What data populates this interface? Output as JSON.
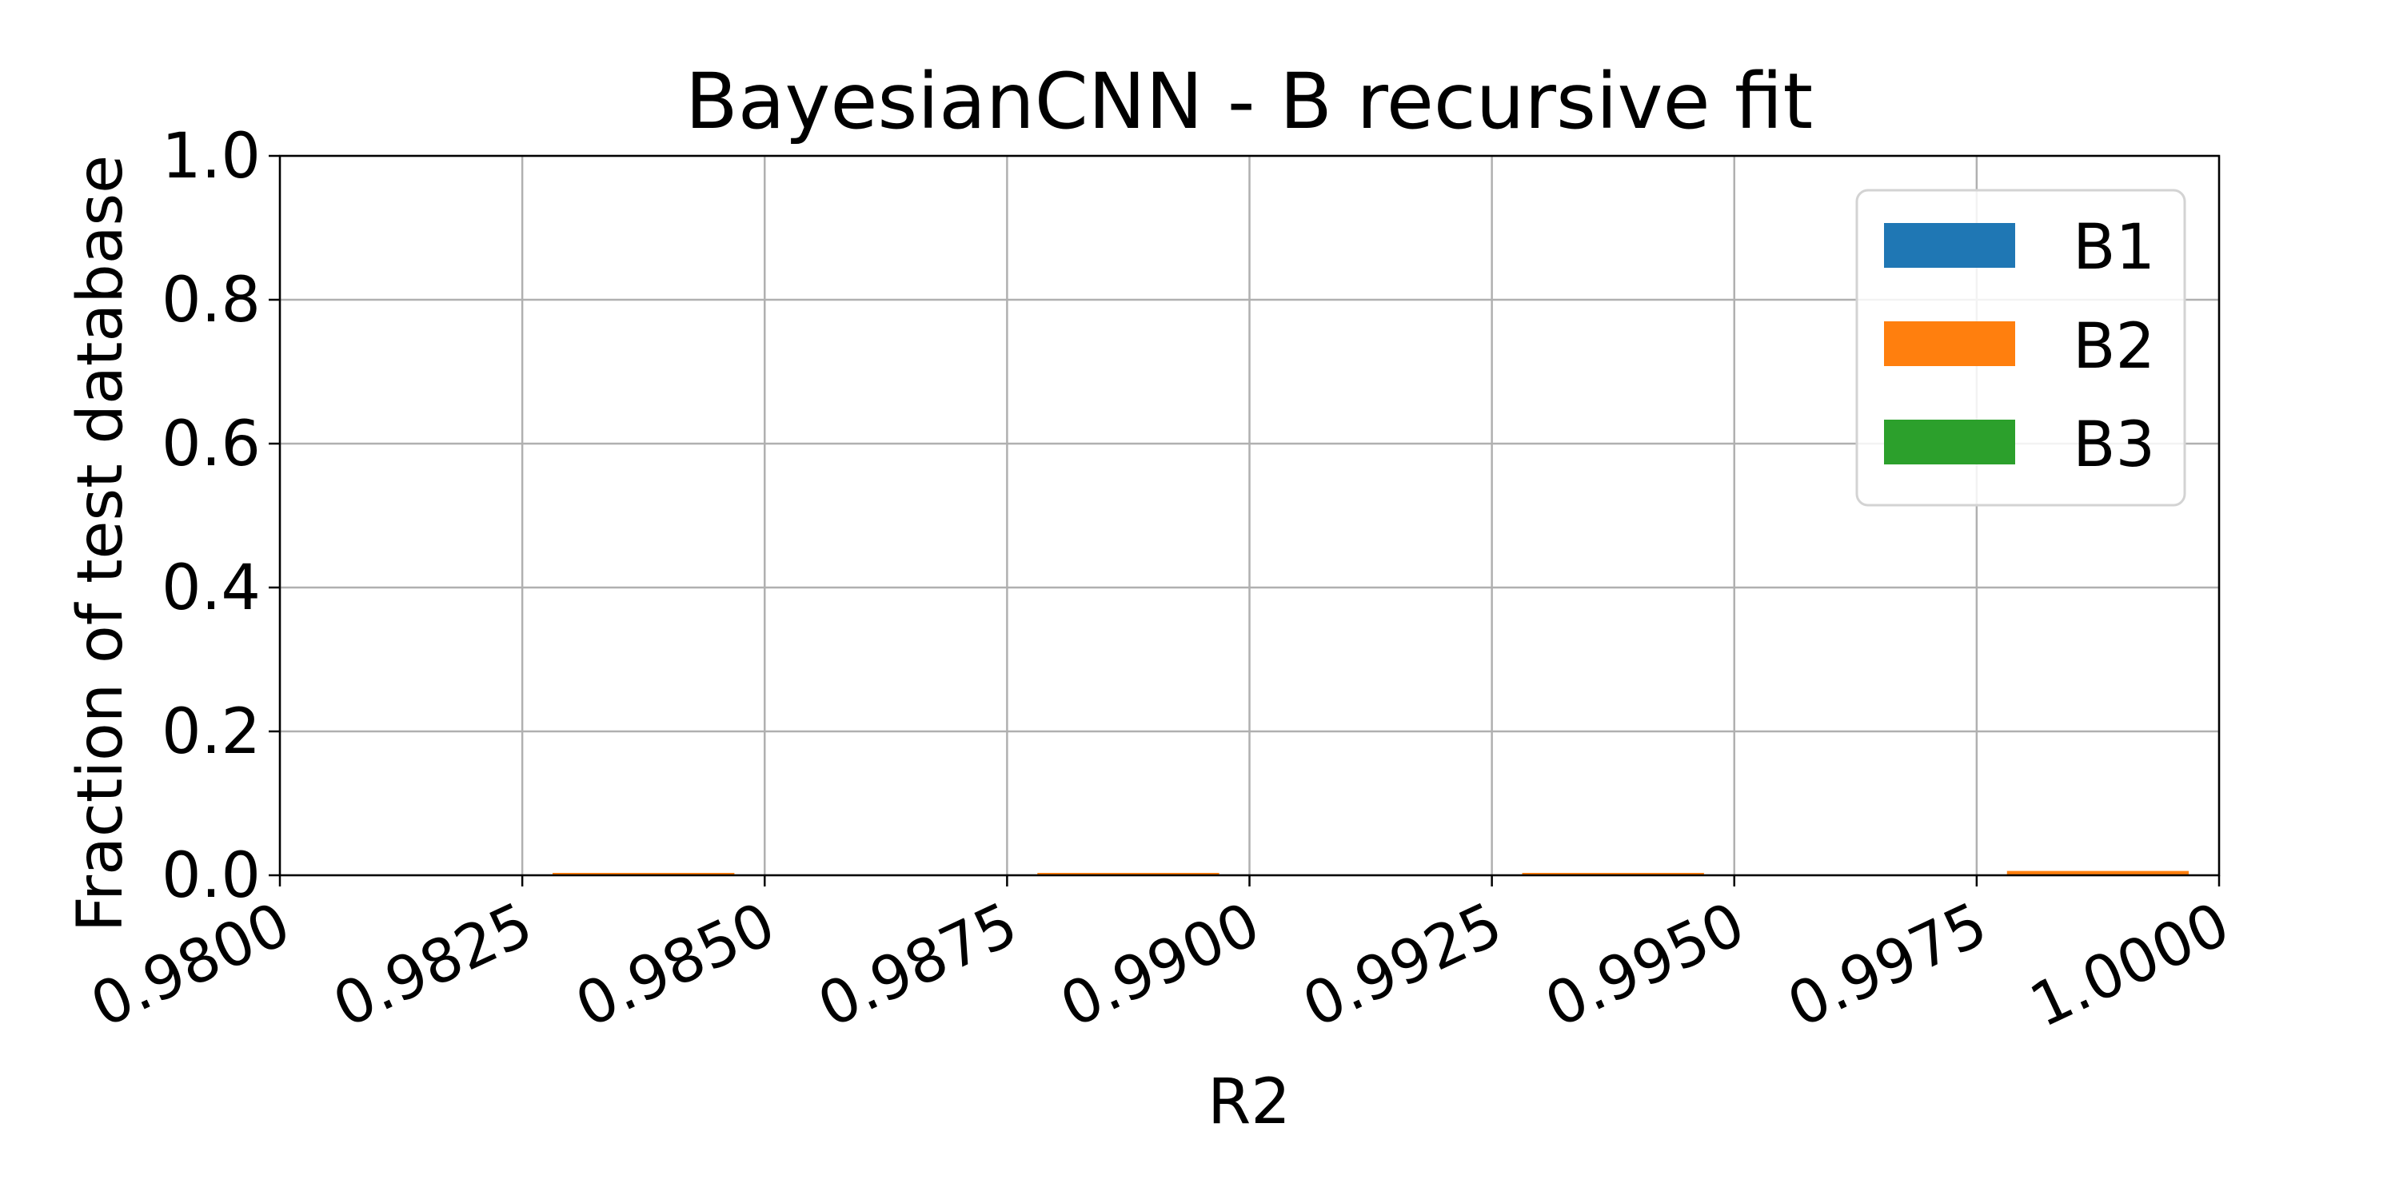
{
  "chart_data": {
    "type": "bar",
    "title": "BayesianCNN - B recursive fit",
    "xlabel": "R2",
    "ylabel": "Fraction of test database",
    "xlim": [
      0.98,
      1.0
    ],
    "ylim": [
      0.0,
      1.0
    ],
    "x_tick_labels": [
      "0.9800",
      "0.9825",
      "0.9850",
      "0.9875",
      "0.9900",
      "0.9925",
      "0.9950",
      "0.9975",
      "1.0000"
    ],
    "y_tick_labels": [
      "0.0",
      "0.2",
      "0.4",
      "0.6",
      "0.8",
      "1.0"
    ],
    "x_ticks": [
      0.98,
      0.9825,
      0.985,
      0.9875,
      0.99,
      0.9925,
      0.995,
      0.9975,
      1.0
    ],
    "y_ticks": [
      0.0,
      0.2,
      0.4,
      0.6,
      0.8,
      1.0
    ],
    "grid": true,
    "legend_position": "top-right",
    "bin_centers": [
      0.98125,
      0.98375,
      0.98625,
      0.98875,
      0.99125,
      0.99375,
      0.99625,
      0.99875
    ],
    "bar_width": 0.0025,
    "series": [
      {
        "name": "B1",
        "color": "#1f77b4",
        "values": [
          0,
          0,
          0,
          0,
          0,
          0,
          0,
          0
        ]
      },
      {
        "name": "B2",
        "color": "#ff7f0e",
        "values": [
          0,
          0.002,
          0,
          0.002,
          0,
          0.003,
          0,
          0.006
        ]
      },
      {
        "name": "B3",
        "color": "#2ca02c",
        "values": [
          0,
          0,
          0,
          0,
          0,
          0,
          0,
          0
        ]
      }
    ]
  }
}
